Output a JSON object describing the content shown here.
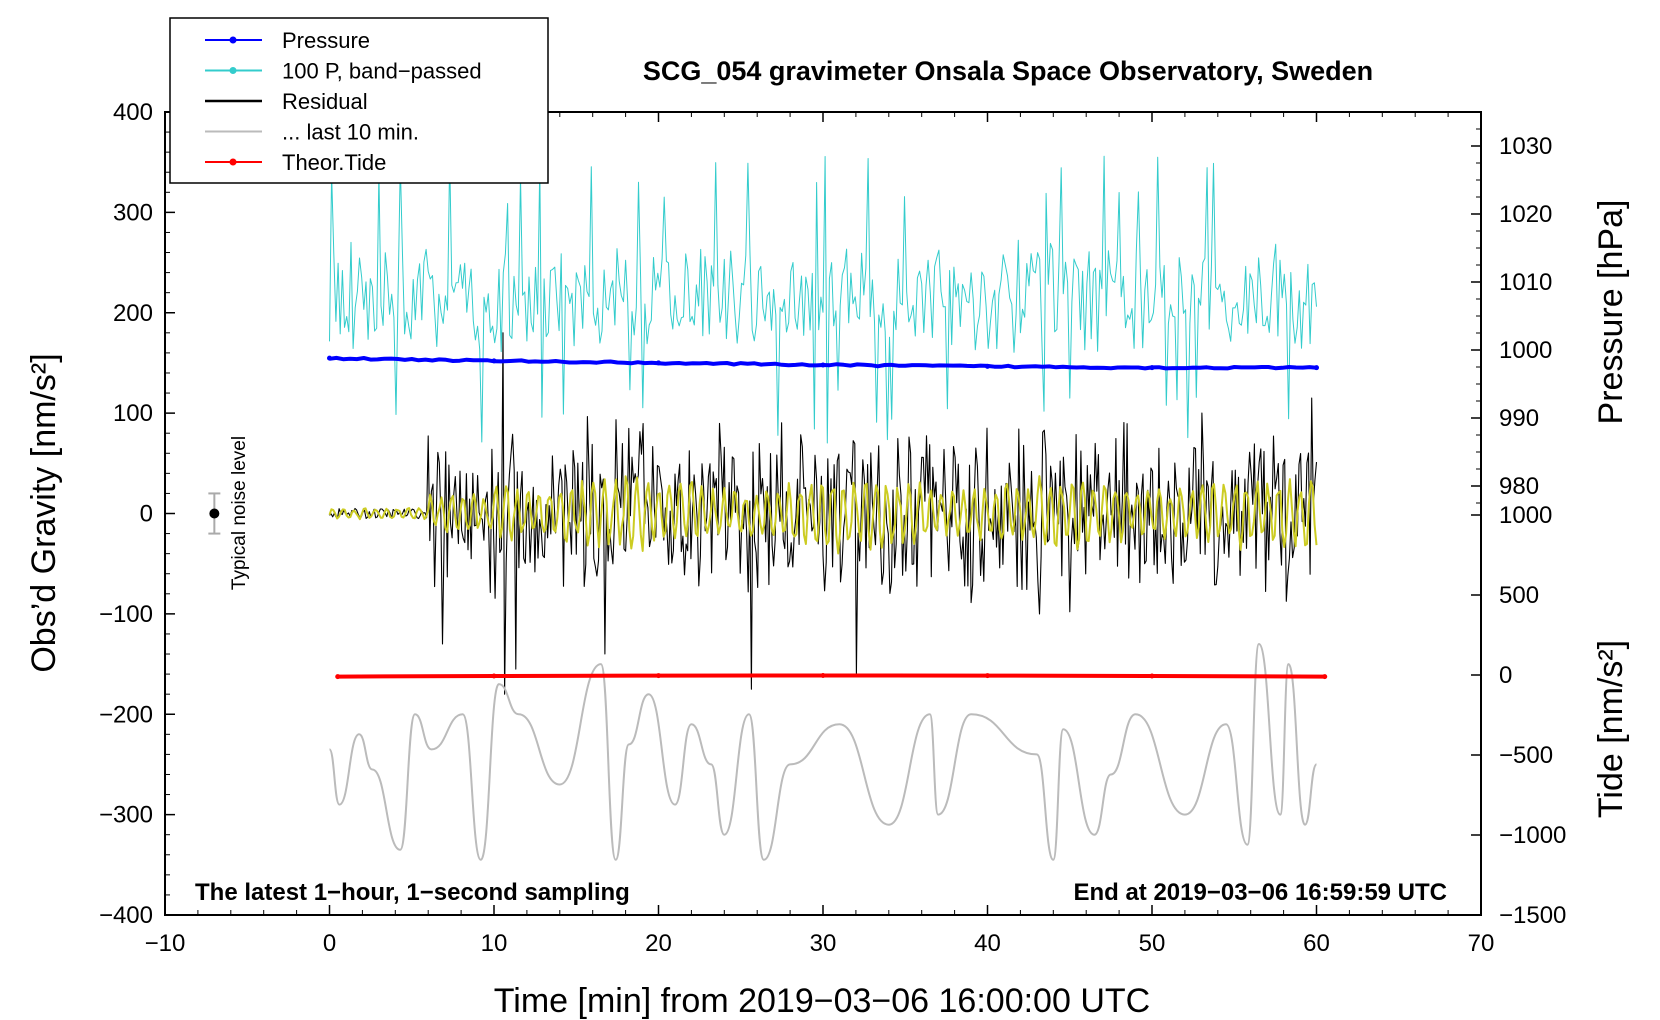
{
  "chart_data": {
    "type": "line",
    "title": "SCG_054 gravimeter Onsala Space Observatory, Sweden",
    "xlabel": "Time [min] from 2019−03−06 16:00:00 UTC",
    "ylabel_left": "Obs’d Gravity [nm/s²]",
    "ylabel_pressure": "Pressure [hPa]",
    "ylabel_tide": "Tide [nm/s²]",
    "xlim": [
      -10,
      70
    ],
    "ylim": [
      -400,
      400
    ],
    "pressure_range": [
      975,
      1035
    ],
    "tide_range": [
      -1500,
      1000
    ],
    "x_ticks": [
      "−10",
      "0",
      "10",
      "20",
      "30",
      "40",
      "50",
      "60",
      "70"
    ],
    "y_ticks": [
      "400",
      "300",
      "200",
      "100",
      "0",
      "−100",
      "−200",
      "−300",
      "−400"
    ],
    "pressure_ticks": [
      "1030",
      "1020",
      "1010",
      "1000",
      "990",
      "980"
    ],
    "tide_ticks": [
      "1000",
      "500",
      "0",
      "−500",
      "−1000",
      "−1500"
    ],
    "legend": [
      {
        "label": "Pressure",
        "color": "#0000ff",
        "marker": true
      },
      {
        "label": "100 P, band−passed",
        "color": "#33cccc",
        "marker": true
      },
      {
        "label": "Residual",
        "color": "#000000",
        "marker": false
      },
      {
        "label": "... last 10 min.",
        "color": "#bbbbbb",
        "marker": false
      },
      {
        "label": "Theor.Tide",
        "color": "#ff0000",
        "marker": true
      }
    ],
    "note_left": "The latest 1−hour, 1−second sampling",
    "note_right": "End at 2019−03−06 16:59:59 UTC",
    "noise_label": "Typical noise level",
    "noise_bar": {
      "x": -7,
      "y": 0,
      "err": 20
    },
    "series": [
      {
        "name": "Pressure",
        "color": "#0000ff",
        "unit": "hPa",
        "x": [
          0,
          10,
          20,
          30,
          40,
          50,
          60
        ],
        "values": [
          998.8,
          998.4,
          998.1,
          997.8,
          997.6,
          997.4,
          997.4
        ]
      },
      {
        "name": "100 P, band−passed",
        "color": "#33cccc",
        "unit": "nm/s²",
        "baseline": 215,
        "amplitude": 45,
        "x_range": [
          0,
          60
        ]
      },
      {
        "name": "Residual",
        "color": "#000000",
        "unit": "nm/s²",
        "quiet_until": 6,
        "amplitude": 80,
        "spikes": [
          [
            6.8,
            -130
          ],
          [
            10.5,
            180
          ],
          [
            10.6,
            -180
          ],
          [
            11.3,
            -155
          ],
          [
            16.7,
            -140
          ],
          [
            25.6,
            -175
          ],
          [
            32.0,
            -160
          ],
          [
            53.0,
            100
          ],
          [
            59.7,
            115
          ]
        ],
        "x_range": [
          0,
          60
        ]
      },
      {
        "name": "Residual (yellow overlay)",
        "color": "#cccc22",
        "unit": "nm/s²",
        "amplitude": 30,
        "x_range": [
          0,
          60
        ]
      },
      {
        "name": "... last 10 min.",
        "color": "#bbbbbb",
        "unit": "nm/s²",
        "baseline": -265,
        "x": [
          0,
          0.6,
          1.8,
          2.6,
          4.3,
          5.2,
          6.2,
          8.1,
          9.2,
          10.3,
          11.5,
          14.0,
          16.5,
          17.4,
          18.2,
          19.4,
          21.0,
          22.0,
          23.2,
          24.0,
          25.5,
          26.4,
          28.0,
          31.0,
          34.0,
          36.5,
          37.0,
          39.0,
          43.0,
          44.0,
          44.6,
          46.5,
          47.5,
          49.0,
          52.0,
          54.5,
          55.8,
          56.5,
          57.8,
          58.3,
          59.3,
          60.0
        ],
        "values": [
          -235,
          -290,
          -220,
          -255,
          -335,
          -200,
          -235,
          -200,
          -345,
          -170,
          -200,
          -270,
          -150,
          -345,
          -230,
          -180,
          -290,
          -210,
          -250,
          -320,
          -200,
          -345,
          -250,
          -210,
          -310,
          -200,
          -300,
          -200,
          -240,
          -345,
          -215,
          -320,
          -260,
          -200,
          -300,
          -210,
          -330,
          -130,
          -300,
          -150,
          -310,
          -250
        ]
      },
      {
        "name": "Theor.Tide",
        "color": "#ff0000",
        "unit": "nm/s²",
        "x": [
          0.5,
          10,
          20,
          30,
          40,
          50,
          60.5
        ],
        "values": [
          -10,
          -6,
          -4,
          -3,
          -4,
          -6,
          -10
        ]
      }
    ]
  }
}
